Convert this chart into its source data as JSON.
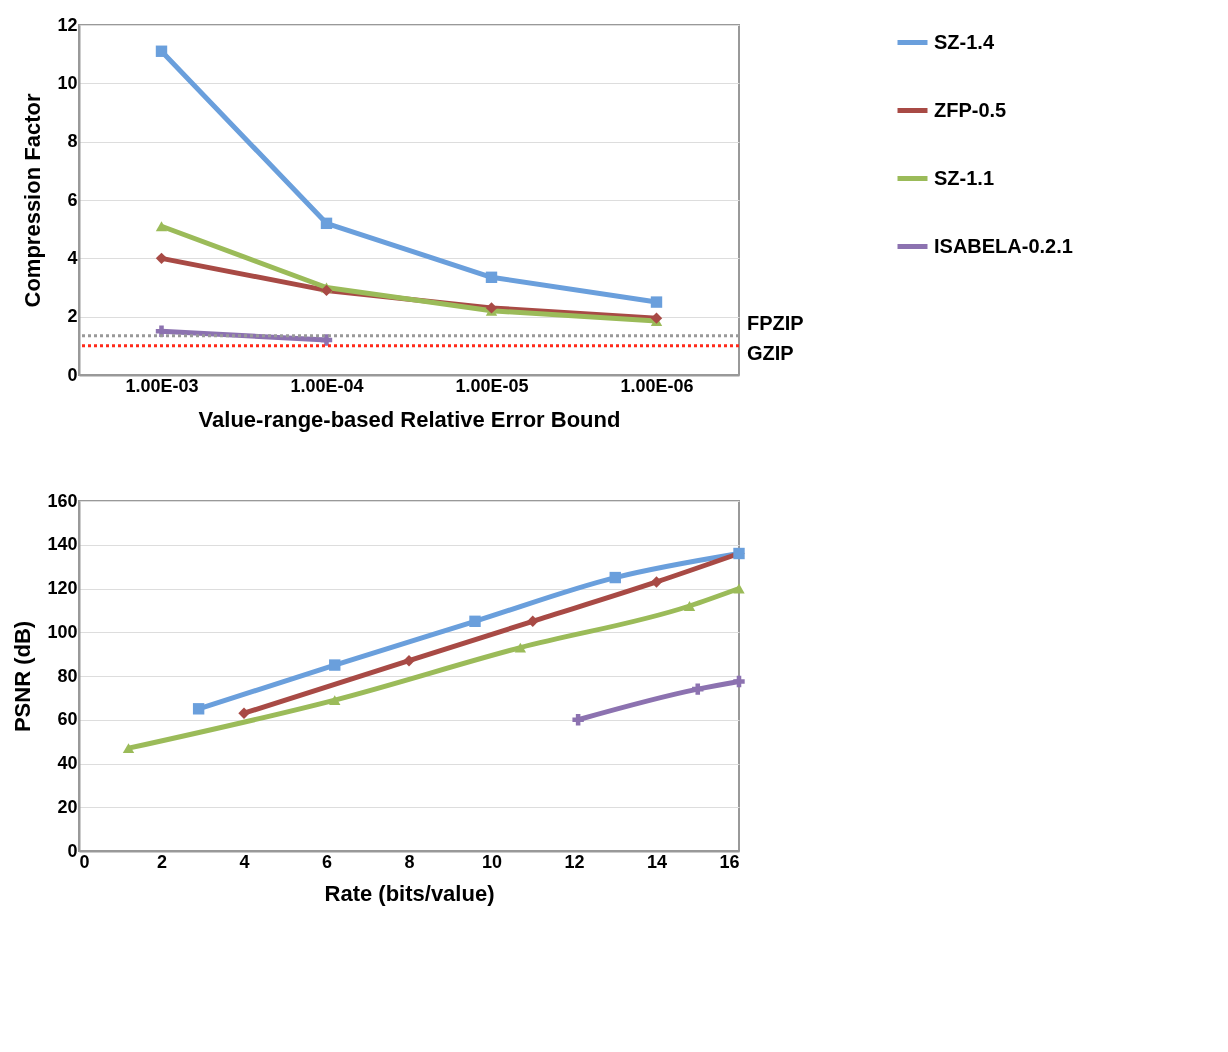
{
  "chart_data": [
    {
      "type": "line",
      "xlabel": "Value-range-based Relative Error Bound",
      "ylabel": "Compression Factor",
      "categories": [
        "1.00E-03",
        "1.00E-04",
        "1.00E-05",
        "1.00E-06"
      ],
      "series": [
        {
          "name": "SZ-1.4",
          "color": "#6a9fdc",
          "marker": "square",
          "values": [
            11.1,
            5.2,
            3.35,
            2.5
          ]
        },
        {
          "name": "ZFP-0.5",
          "color": "#a84a45",
          "marker": "diamond",
          "values": [
            4.0,
            2.9,
            2.3,
            1.95
          ]
        },
        {
          "name": "SZ-1.1",
          "color": "#9bbb59",
          "marker": "triangle",
          "values": [
            5.1,
            3.0,
            2.2,
            1.85
          ]
        },
        {
          "name": "ISABELA-0.2.1",
          "color": "#8c72b0",
          "marker": "cross",
          "values": [
            1.5,
            1.2,
            null,
            null
          ]
        }
      ],
      "ref_lines": [
        {
          "axis": "y",
          "value": 1.35,
          "label": "FPZIP",
          "color": "#999999",
          "line_style": "dotted"
        },
        {
          "axis": "y",
          "value": 1.0,
          "label": "GZIP",
          "color": "#ff2a1a",
          "line_style": "dotted"
        }
      ],
      "ylim": [
        0,
        12
      ],
      "yticks": [
        0,
        2,
        4,
        6,
        8,
        10,
        12
      ],
      "grid": "y",
      "legend": "right",
      "line_style": "solid"
    },
    {
      "type": "line",
      "xlabel": "Rate (bits/value)",
      "ylabel": "PSNR (dB)",
      "series": [
        {
          "name": "SZ-1.4",
          "color": "#6a9fdc",
          "marker": "square",
          "x": [
            2.9,
            6.2,
            9.6,
            13,
            16
          ],
          "values": [
            65,
            85,
            105,
            125,
            136
          ]
        },
        {
          "name": "ZFP-0.5",
          "color": "#a84a45",
          "marker": "diamond",
          "x": [
            4,
            8,
            11,
            14,
            16
          ],
          "values": [
            63,
            87,
            105,
            123,
            136
          ]
        },
        {
          "name": "SZ-1.1",
          "color": "#9bbb59",
          "marker": "triangle",
          "x": [
            1.2,
            6.2,
            10.7,
            14.8,
            16
          ],
          "values": [
            47,
            69,
            93,
            112,
            120
          ]
        },
        {
          "name": "ISABELA-0.2.1",
          "color": "#8c72b0",
          "marker": "cross",
          "x": [
            12.1,
            15,
            16
          ],
          "values": [
            60,
            74,
            77.5
          ]
        }
      ],
      "xlim": [
        0,
        16
      ],
      "xticks": [
        0,
        2,
        4,
        6,
        8,
        10,
        12,
        14,
        16
      ],
      "ylim": [
        0,
        160
      ],
      "yticks": [
        0,
        20,
        40,
        60,
        80,
        100,
        120,
        140,
        160
      ],
      "grid": "y",
      "legend": "right",
      "line_style": "solid"
    }
  ]
}
